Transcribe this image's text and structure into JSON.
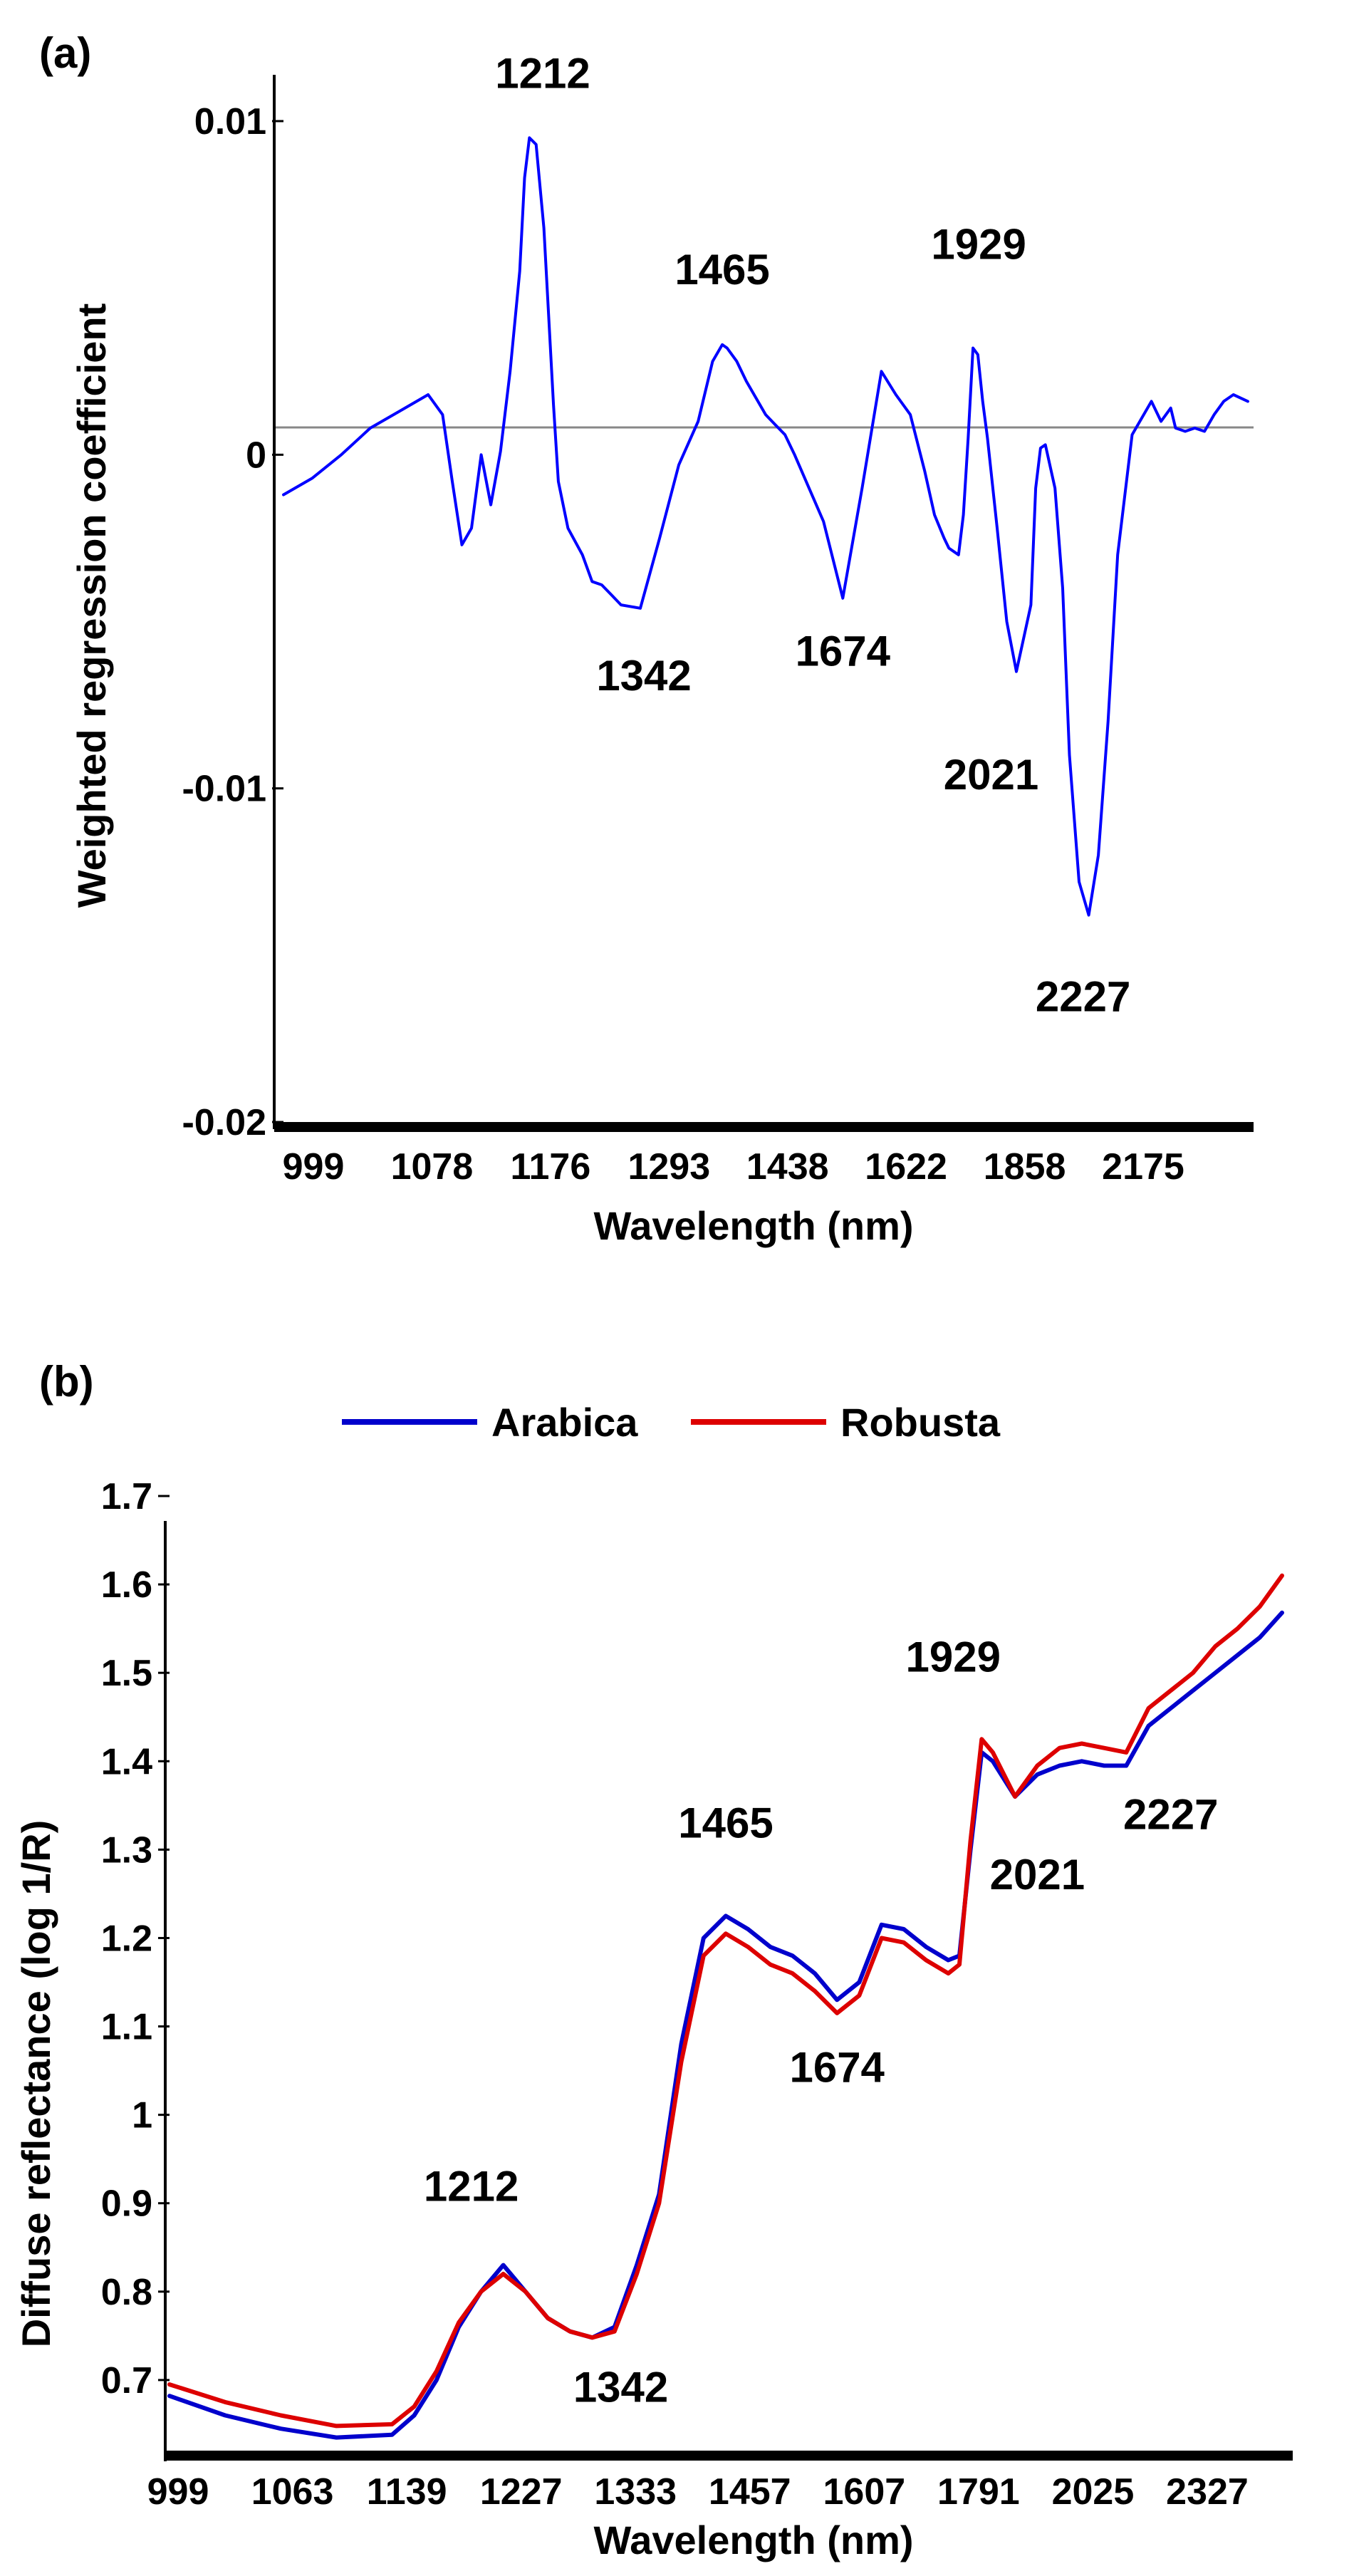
{
  "chart_data": [
    {
      "type": "line",
      "panel_label": "(a)",
      "xlabel": "Wavelength (nm)",
      "ylabel": "Weighted regression coefficient",
      "categories": [
        "999",
        "1078",
        "1176",
        "1293",
        "1438",
        "1622",
        "1858",
        "2175"
      ],
      "yticks": [
        {
          "value": 0.01,
          "label": "0.01"
        },
        {
          "value": 0,
          "label": "0"
        },
        {
          "value": -0.01,
          "label": "-0.01"
        },
        {
          "value": -0.02,
          "label": "-0.02"
        }
      ],
      "ylim": [
        -0.02,
        0.01
      ],
      "xlim": [
        0,
        1
      ],
      "zero_line": true,
      "series": [
        {
          "name": "Weighted regression coefficient",
          "color": "#0000ff",
          "x": [
            0.0,
            0.03,
            0.06,
            0.09,
            0.12,
            0.15,
            0.165,
            0.175,
            0.185,
            0.195,
            0.205,
            0.215,
            0.225,
            0.235,
            0.245,
            0.25,
            0.255,
            0.262,
            0.27,
            0.28,
            0.285,
            0.295,
            0.31,
            0.32,
            0.33,
            0.34,
            0.35,
            0.37,
            0.39,
            0.41,
            0.43,
            0.445,
            0.455,
            0.46,
            0.47,
            0.48,
            0.49,
            0.5,
            0.51,
            0.52,
            0.53,
            0.545,
            0.56,
            0.58,
            0.6,
            0.62,
            0.635,
            0.65,
            0.665,
            0.675,
            0.685,
            0.69,
            0.7,
            0.705,
            0.71,
            0.715,
            0.72,
            0.725,
            0.73,
            0.74,
            0.75,
            0.76,
            0.775,
            0.78,
            0.785,
            0.79,
            0.8,
            0.808,
            0.815,
            0.825,
            0.835,
            0.845,
            0.855,
            0.865,
            0.88,
            0.9,
            0.91,
            0.92,
            0.925,
            0.935,
            0.945,
            0.955,
            0.965,
            0.975,
            0.985,
            1.0
          ],
          "values": [
            -0.0012,
            -0.0007,
            0.0,
            0.0008,
            0.0013,
            0.0018,
            0.0012,
            -0.0008,
            -0.0027,
            -0.0022,
            0.0,
            -0.0015,
            0.0001,
            0.0025,
            0.0055,
            0.0083,
            0.0095,
            0.0093,
            0.0068,
            0.0015,
            -0.0008,
            -0.0022,
            -0.003,
            -0.0038,
            -0.0039,
            -0.0042,
            -0.0045,
            -0.0046,
            -0.0025,
            -0.0003,
            0.001,
            0.0028,
            0.0033,
            0.0032,
            0.0028,
            0.0022,
            0.0017,
            0.0012,
            0.0009,
            0.0006,
            0.0,
            -0.001,
            -0.002,
            -0.0043,
            -0.001,
            0.0025,
            0.0018,
            0.0012,
            -0.0005,
            -0.0018,
            -0.0025,
            -0.0028,
            -0.003,
            -0.0018,
            0.0005,
            0.0032,
            0.003,
            0.0016,
            0.0005,
            -0.0022,
            -0.005,
            -0.0065,
            -0.0045,
            -0.001,
            0.0002,
            0.0003,
            -0.001,
            -0.004,
            -0.009,
            -0.0128,
            -0.0138,
            -0.012,
            -0.008,
            -0.003,
            0.0006,
            0.0016,
            0.001,
            0.0014,
            0.0008,
            0.0007,
            0.0008,
            0.0007,
            0.0012,
            0.0016,
            0.0018,
            0.0016
          ]
        }
      ],
      "annotations": [
        {
          "text": "1212",
          "x": 0.26,
          "y": 0.0095
        },
        {
          "text": "1342",
          "x": 0.39,
          "y": -0.0046
        },
        {
          "text": "1465",
          "x": 0.455,
          "y": 0.0033
        },
        {
          "text": "1674",
          "x": 0.58,
          "y": -0.0043
        },
        {
          "text": "1929",
          "x": 0.715,
          "y": 0.0032
        },
        {
          "text": "2021",
          "x": 0.75,
          "y": -0.0065
        },
        {
          "text": "2227",
          "x": 0.835,
          "y": -0.0138
        }
      ]
    },
    {
      "type": "line",
      "panel_label": "(b)",
      "xlabel": "Wavelength (nm)",
      "ylabel": "Diffuse reflectance (log 1/R)",
      "categories": [
        "999",
        "1063",
        "1139",
        "1227",
        "1333",
        "1457",
        "1607",
        "1791",
        "2025",
        "2327"
      ],
      "yticks": [
        {
          "value": 1.7,
          "label": "1.7"
        },
        {
          "value": 1.6,
          "label": "1.6"
        },
        {
          "value": 1.5,
          "label": "1.5"
        },
        {
          "value": 1.4,
          "label": "1.4"
        },
        {
          "value": 1.3,
          "label": "1.3"
        },
        {
          "value": 1.2,
          "label": "1.2"
        },
        {
          "value": 1.1,
          "label": "1.1"
        },
        {
          "value": 1.0,
          "label": "1"
        },
        {
          "value": 0.9,
          "label": "0.9"
        },
        {
          "value": 0.8,
          "label": "0.8"
        },
        {
          "value": 0.7,
          "label": "0.7"
        }
      ],
      "ylim": [
        0.6,
        1.7
      ],
      "xlim": [
        0,
        1
      ],
      "legend": "top",
      "series": [
        {
          "name": "Arabica",
          "color": "#0000cc",
          "x": [
            0.0,
            0.05,
            0.1,
            0.15,
            0.2,
            0.22,
            0.24,
            0.26,
            0.28,
            0.3,
            0.32,
            0.34,
            0.36,
            0.38,
            0.4,
            0.42,
            0.44,
            0.46,
            0.48,
            0.5,
            0.52,
            0.54,
            0.56,
            0.58,
            0.6,
            0.62,
            0.64,
            0.66,
            0.68,
            0.7,
            0.71,
            0.72,
            0.73,
            0.74,
            0.76,
            0.78,
            0.8,
            0.82,
            0.84,
            0.86,
            0.88,
            0.9,
            0.92,
            0.94,
            0.96,
            0.98,
            1.0
          ],
          "values": [
            0.682,
            0.66,
            0.645,
            0.635,
            0.638,
            0.66,
            0.7,
            0.76,
            0.8,
            0.83,
            0.8,
            0.77,
            0.755,
            0.748,
            0.76,
            0.83,
            0.91,
            1.08,
            1.2,
            1.225,
            1.21,
            1.19,
            1.18,
            1.16,
            1.13,
            1.15,
            1.215,
            1.21,
            1.19,
            1.175,
            1.18,
            1.3,
            1.41,
            1.4,
            1.36,
            1.385,
            1.395,
            1.4,
            1.395,
            1.395,
            1.44,
            1.46,
            1.48,
            1.5,
            1.52,
            1.54,
            1.568
          ]
        },
        {
          "name": "Robusta",
          "color": "#dd0000",
          "x": [
            0.0,
            0.05,
            0.1,
            0.15,
            0.2,
            0.22,
            0.24,
            0.26,
            0.28,
            0.3,
            0.32,
            0.34,
            0.36,
            0.38,
            0.4,
            0.42,
            0.44,
            0.46,
            0.48,
            0.5,
            0.52,
            0.54,
            0.56,
            0.58,
            0.6,
            0.62,
            0.64,
            0.66,
            0.68,
            0.7,
            0.71,
            0.72,
            0.73,
            0.74,
            0.76,
            0.78,
            0.8,
            0.82,
            0.84,
            0.86,
            0.88,
            0.9,
            0.92,
            0.94,
            0.96,
            0.98,
            1.0
          ],
          "values": [
            0.695,
            0.675,
            0.66,
            0.648,
            0.65,
            0.67,
            0.71,
            0.765,
            0.8,
            0.82,
            0.8,
            0.77,
            0.755,
            0.748,
            0.755,
            0.82,
            0.9,
            1.06,
            1.18,
            1.205,
            1.19,
            1.17,
            1.16,
            1.14,
            1.115,
            1.135,
            1.2,
            1.195,
            1.175,
            1.16,
            1.17,
            1.31,
            1.425,
            1.41,
            1.36,
            1.395,
            1.415,
            1.42,
            1.415,
            1.41,
            1.46,
            1.48,
            1.5,
            1.53,
            1.55,
            1.575,
            1.61
          ]
        }
      ],
      "annotations": [
        {
          "text": "1212",
          "x": 0.3,
          "y": 0.83
        },
        {
          "text": "1342",
          "x": 0.38,
          "y": 0.748
        },
        {
          "text": "1465",
          "x": 0.5,
          "y": 1.225
        },
        {
          "text": "1674",
          "x": 0.6,
          "y": 1.13
        },
        {
          "text": "1929",
          "x": 0.73,
          "y": 1.425
        },
        {
          "text": "2021",
          "x": 0.78,
          "y": 1.36
        },
        {
          "text": "2227",
          "x": 0.9,
          "y": 1.4
        }
      ]
    }
  ]
}
